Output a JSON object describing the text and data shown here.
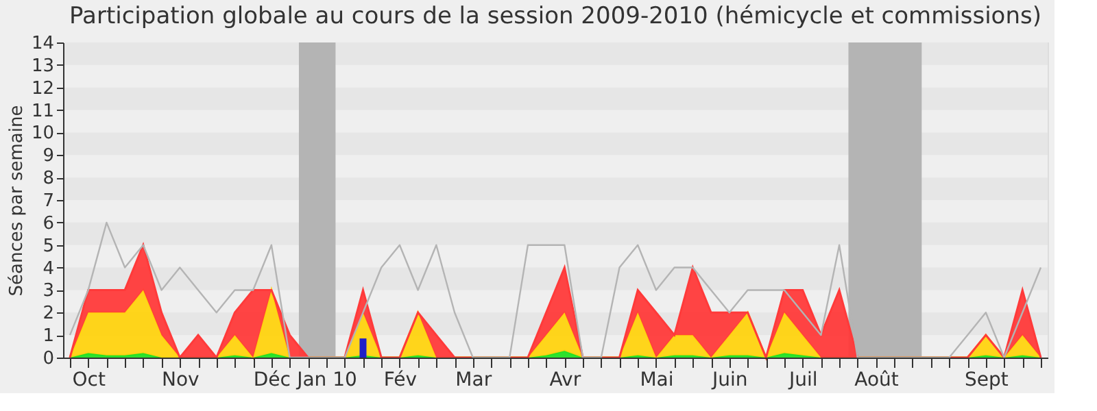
{
  "chart_data": {
    "type": "area",
    "title": "Participation globale au cours de la session 2009-2010 (hémicycle et commissions)",
    "ylabel": "Séances par semaine",
    "categories": [
      null,
      "Oct",
      null,
      null,
      null,
      null,
      "Nov",
      null,
      null,
      null,
      null,
      "Déc",
      null,
      null,
      "Jan 10",
      null,
      null,
      null,
      "Fév",
      null,
      null,
      null,
      "Mar",
      null,
      null,
      null,
      null,
      "Avr",
      null,
      null,
      null,
      null,
      "Mai",
      null,
      null,
      null,
      "Juin",
      null,
      null,
      null,
      "Juil",
      null,
      null,
      null,
      "Août",
      null,
      null,
      null,
      null,
      null,
      "Sept",
      null,
      null,
      null
    ],
    "stacked": true,
    "series": [
      {
        "color": "#22e022",
        "values": [
          0,
          0.2,
          0.1,
          0.1,
          0.2,
          0,
          0,
          0,
          0,
          0.1,
          0,
          0.2,
          0,
          0,
          0,
          0,
          0.1,
          0,
          0,
          0.1,
          0,
          0,
          0,
          0,
          0,
          0,
          0.1,
          0.3,
          0,
          0,
          0,
          0.1,
          0,
          0.1,
          0.1,
          0,
          0.1,
          0.1,
          0,
          0.2,
          0.1,
          0,
          0,
          0,
          0,
          0,
          0,
          0,
          0,
          0,
          0.1,
          0,
          0.1,
          0
        ]
      },
      {
        "color": "#ffd30f",
        "values": [
          0,
          1.8,
          1.9,
          1.9,
          2.8,
          1,
          0,
          0,
          0,
          0.9,
          0,
          2.8,
          0,
          0,
          0,
          0,
          1.9,
          0,
          0,
          1.9,
          0,
          0,
          0,
          0,
          0,
          0,
          0.9,
          1.7,
          0,
          0,
          0,
          1.9,
          0,
          0.9,
          0.9,
          0,
          0.9,
          1.9,
          0,
          1.8,
          0.9,
          0,
          0,
          0,
          0,
          0,
          0,
          0,
          0,
          0,
          0.9,
          0,
          0.9,
          0
        ]
      },
      {
        "color": "#ff3a3a",
        "values": [
          0,
          1,
          1,
          1,
          2,
          1,
          0,
          1,
          0,
          1,
          3,
          0,
          1,
          0,
          0,
          0,
          1,
          0,
          0,
          0,
          1,
          0,
          0,
          0,
          0,
          0,
          1,
          2,
          0,
          0,
          0,
          1,
          2,
          0,
          3,
          2,
          1,
          0,
          0,
          1,
          2,
          1,
          3,
          0,
          0,
          0,
          0,
          0,
          0,
          0,
          0,
          0,
          2,
          0
        ]
      },
      {
        "type": "line",
        "color": "#b4b4b4",
        "values": [
          1,
          3,
          6,
          4,
          5,
          3,
          4,
          3,
          2,
          3,
          3,
          5,
          0,
          0,
          0,
          0,
          2,
          4,
          5,
          3,
          5,
          2,
          0,
          0,
          0,
          5,
          5,
          5,
          0,
          0,
          4,
          5,
          3,
          4,
          4,
          3,
          2,
          3,
          3,
          3,
          2,
          1,
          5,
          0,
          0,
          0,
          0,
          0,
          0,
          1,
          2,
          0,
          2,
          4
        ]
      },
      {
        "type": "bar",
        "color": "#2020c8",
        "values": [
          null,
          null,
          null,
          null,
          null,
          null,
          null,
          null,
          null,
          null,
          null,
          null,
          null,
          null,
          null,
          null,
          0.85,
          null,
          null,
          null,
          null,
          null,
          null,
          null,
          null,
          null,
          null,
          null,
          null,
          null,
          null,
          null,
          null,
          null,
          null,
          null,
          null,
          null,
          null,
          null,
          null,
          null,
          null,
          null,
          null,
          null,
          null,
          null,
          null,
          null,
          null,
          null,
          null,
          null
        ]
      }
    ],
    "ylim": [
      0,
      14
    ],
    "yticks": [
      0,
      1,
      2,
      3,
      4,
      5,
      6,
      7,
      8,
      9,
      10,
      11,
      12,
      13,
      14
    ]
  }
}
